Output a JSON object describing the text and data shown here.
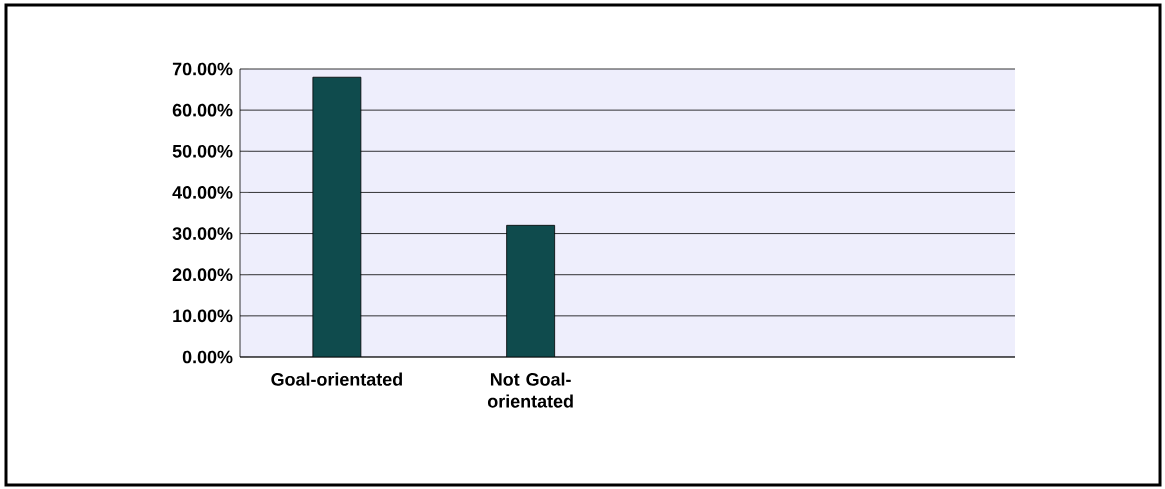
{
  "chart_data": {
    "type": "bar",
    "categories": [
      "Goal-orientated",
      "Not Goal-orientated",
      null,
      null
    ],
    "values": [
      68,
      32,
      null,
      null
    ],
    "color": "#0f4b4d",
    "ylim": [
      0,
      70
    ],
    "yticks": [
      {
        "value": 0,
        "label": "0.00%"
      },
      {
        "value": 10,
        "label": "10.00%"
      },
      {
        "value": 20,
        "label": "20.00%"
      },
      {
        "value": 30,
        "label": "30.00%"
      },
      {
        "value": 40,
        "label": "40.00%"
      },
      {
        "value": 50,
        "label": "50.00%"
      },
      {
        "value": 60,
        "label": "60.00%"
      },
      {
        "value": 70,
        "label": "70.00%"
      }
    ],
    "grid": "y"
  }
}
